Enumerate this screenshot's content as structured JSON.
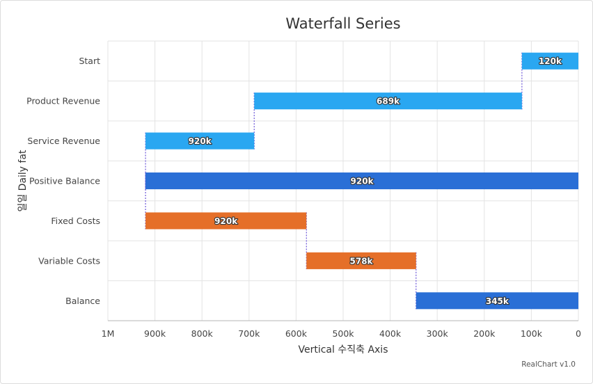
{
  "chart_data": {
    "type": "bar",
    "subtype": "waterfall",
    "orientation": "horizontal",
    "title": "Waterfall Series",
    "xlabel": "Vertical 수직축 Axis",
    "ylabel": "일일 Daily fat",
    "xlim": [
      0,
      1000000
    ],
    "x_reversed": true,
    "x_ticks": [
      {
        "value": 1000000,
        "label": "1M"
      },
      {
        "value": 900000,
        "label": "900k"
      },
      {
        "value": 800000,
        "label": "800k"
      },
      {
        "value": 700000,
        "label": "700k"
      },
      {
        "value": 600000,
        "label": "600k"
      },
      {
        "value": 500000,
        "label": "500k"
      },
      {
        "value": 400000,
        "label": "400k"
      },
      {
        "value": 300000,
        "label": "300k"
      },
      {
        "value": 200000,
        "label": "200k"
      },
      {
        "value": 100000,
        "label": "100k"
      },
      {
        "value": 0,
        "label": "0"
      }
    ],
    "grid": true,
    "bars": [
      {
        "category": "Start",
        "start": 0,
        "end": 120000,
        "label": "120k",
        "kind": "increase",
        "color": "#2aa7f1"
      },
      {
        "category": "Product Revenue",
        "start": 120000,
        "end": 689000,
        "label": "689k",
        "kind": "increase",
        "color": "#2aa7f1"
      },
      {
        "category": "Service Revenue",
        "start": 689000,
        "end": 920000,
        "label": "920k",
        "kind": "increase",
        "color": "#2aa7f1"
      },
      {
        "category": "Positive Balance",
        "start": 0,
        "end": 920000,
        "label": "920k",
        "kind": "total",
        "color": "#2a6fd6"
      },
      {
        "category": "Fixed Costs",
        "start": 920000,
        "end": 578000,
        "label": "920k",
        "kind": "decrease",
        "color": "#e56f29"
      },
      {
        "category": "Variable Costs",
        "start": 578000,
        "end": 345000,
        "label": "578k",
        "kind": "decrease",
        "color": "#e56f29"
      },
      {
        "category": "Balance",
        "start": 0,
        "end": 345000,
        "label": "345k",
        "kind": "total",
        "color": "#2a6fd6"
      }
    ],
    "credit": "RealChart v1.0"
  }
}
